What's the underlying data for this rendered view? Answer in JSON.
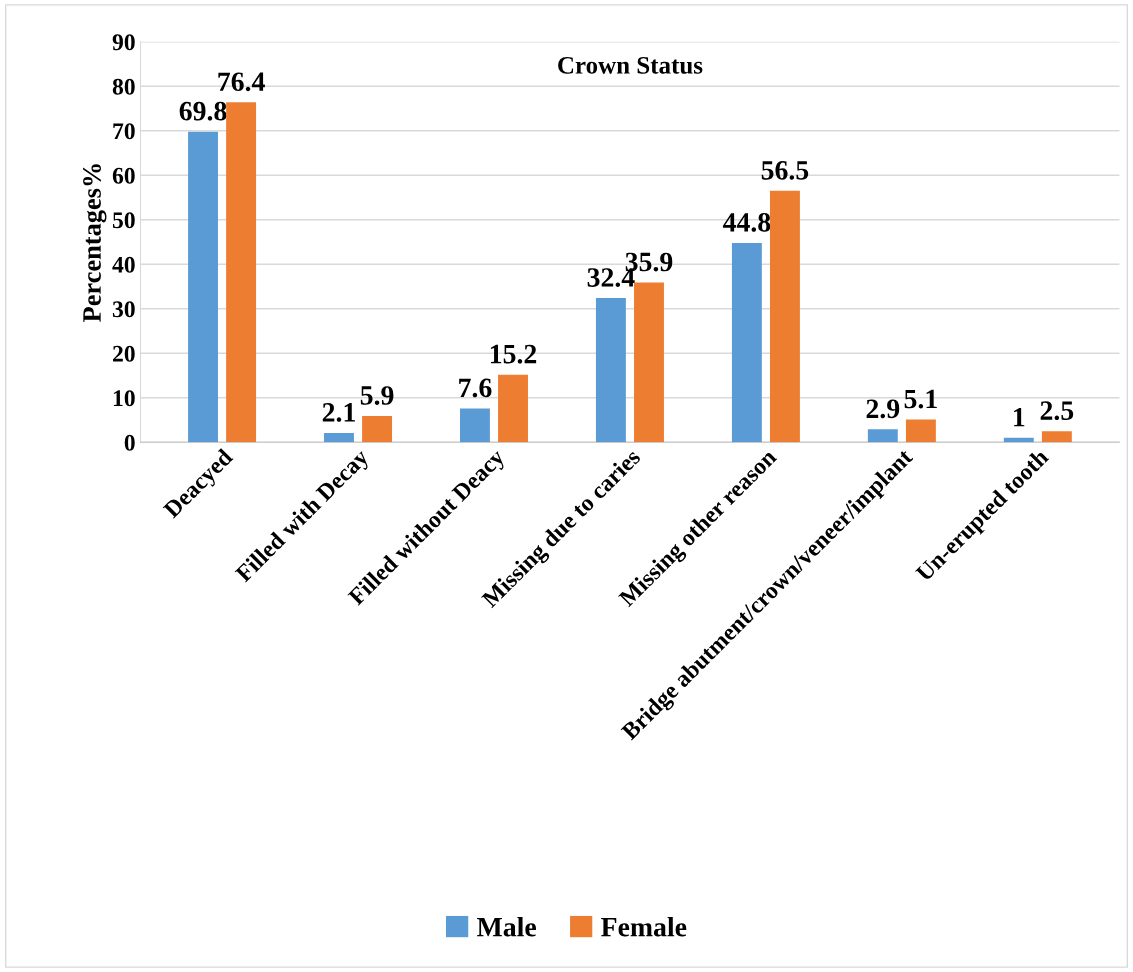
{
  "chart_data": {
    "type": "bar",
    "title": "Crown Status",
    "ylabel": "Percentages%",
    "categories": [
      "Deacyed",
      "Filled with Decay",
      "Filled without Deacy",
      "Missing due to caries",
      "Missing other reason",
      "Bridge abutment/crown/veneer/implant",
      "Un-erupted tooth"
    ],
    "series": [
      {
        "name": "Male",
        "color": "#5b9bd5",
        "values": [
          69.8,
          2.1,
          7.6,
          32.4,
          44.8,
          2.9,
          1
        ]
      },
      {
        "name": "Female",
        "color": "#ed7d31",
        "values": [
          76.4,
          5.9,
          15.2,
          35.9,
          56.5,
          5.1,
          2.5
        ]
      }
    ],
    "ylim": [
      0,
      90
    ],
    "yticks": [
      0,
      10,
      20,
      30,
      40,
      50,
      60,
      70,
      80,
      90
    ],
    "grid": "y",
    "legend": "bottom",
    "data_labels": true
  }
}
